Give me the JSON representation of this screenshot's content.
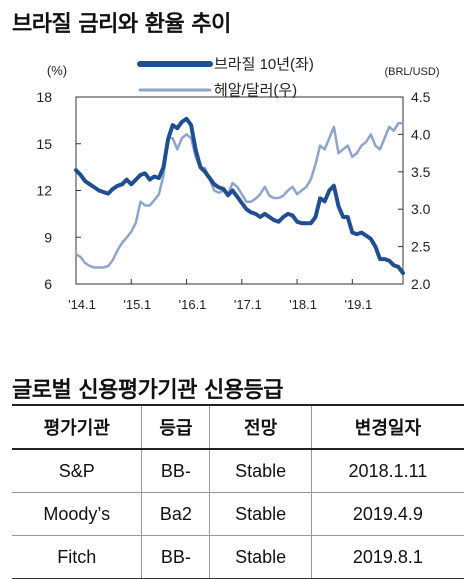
{
  "chart_title": "브라질 금리와 환율 추이",
  "table_title": "글로벌 신용평가기관 신용등급",
  "chart_data": {
    "type": "line",
    "x": [
      "'14.1",
      "'14.2",
      "'14.3",
      "'14.4",
      "'14.5",
      "'14.6",
      "'14.7",
      "'14.8",
      "'14.9",
      "'14.10",
      "'14.11",
      "'14.12",
      "'15.1",
      "'15.2",
      "'15.3",
      "'15.4",
      "'15.5",
      "'15.6",
      "'15.7",
      "'15.8",
      "'15.9",
      "'15.10",
      "'15.11",
      "'15.12",
      "'16.1",
      "'16.2",
      "'16.3",
      "'16.4",
      "'16.5",
      "'16.6",
      "'16.7",
      "'16.8",
      "'16.9",
      "'16.10",
      "'16.11",
      "'16.12",
      "'17.1",
      "'17.2",
      "'17.3",
      "'17.4",
      "'17.5",
      "'17.6",
      "'17.7",
      "'17.8",
      "'17.9",
      "'17.10",
      "'17.11",
      "'17.12",
      "'18.1",
      "'18.2",
      "'18.3",
      "'18.4",
      "'18.5",
      "'18.6",
      "'18.7",
      "'18.8",
      "'18.9",
      "'18.10",
      "'18.11",
      "'18.12",
      "'19.1",
      "'19.2",
      "'19.3",
      "'19.4",
      "'19.5",
      "'19.6",
      "'19.7",
      "'19.8",
      "'19.9",
      "'19.10",
      "'19.11",
      "'19.12"
    ],
    "x_tick_labels": [
      "'14.1",
      "'15.1",
      "'16.1",
      "'17.1",
      "'18.1",
      "'19.1"
    ],
    "series": [
      {
        "name": "브라질 10년(좌)",
        "axis": "left",
        "color": "#1f4e91",
        "values": [
          13.3,
          13.0,
          12.6,
          12.4,
          12.2,
          12.0,
          11.9,
          11.8,
          12.1,
          12.3,
          12.4,
          12.7,
          12.4,
          12.7,
          13.0,
          13.1,
          12.7,
          12.9,
          12.8,
          13.5,
          15.3,
          16.2,
          16.0,
          16.4,
          16.6,
          16.2,
          14.6,
          13.5,
          13.2,
          12.8,
          12.4,
          12.2,
          12.1,
          11.7,
          12.0,
          11.6,
          11.2,
          10.8,
          10.6,
          10.5,
          10.3,
          10.5,
          10.3,
          10.1,
          10.0,
          10.3,
          10.5,
          10.4,
          10.0,
          9.9,
          9.9,
          9.9,
          10.3,
          11.5,
          11.3,
          12.0,
          12.3,
          11.0,
          10.3,
          10.3,
          9.3,
          9.2,
          9.3,
          9.1,
          8.9,
          8.4,
          7.6,
          7.6,
          7.5,
          7.2,
          7.1,
          6.7
        ]
      },
      {
        "name": "헤알/달러(우)",
        "axis": "right",
        "color": "#8fa4cc",
        "values": [
          2.4,
          2.36,
          2.28,
          2.24,
          2.22,
          2.22,
          2.22,
          2.24,
          2.32,
          2.45,
          2.55,
          2.62,
          2.7,
          2.82,
          3.1,
          3.05,
          3.05,
          3.12,
          3.2,
          3.45,
          3.95,
          3.95,
          3.8,
          3.95,
          4.0,
          3.95,
          3.7,
          3.55,
          3.55,
          3.4,
          3.25,
          3.22,
          3.25,
          3.2,
          3.35,
          3.3,
          3.2,
          3.1,
          3.1,
          3.14,
          3.2,
          3.3,
          3.18,
          3.15,
          3.15,
          3.18,
          3.25,
          3.3,
          3.2,
          3.25,
          3.3,
          3.4,
          3.6,
          3.85,
          3.8,
          3.95,
          4.1,
          3.75,
          3.8,
          3.85,
          3.7,
          3.75,
          3.85,
          3.9,
          4.0,
          3.85,
          3.8,
          3.95,
          4.1,
          4.05,
          4.15,
          4.15
        ]
      }
    ],
    "left_axis": {
      "unit": "(%)",
      "ylim": [
        6,
        18
      ],
      "ticks": [
        "18",
        "15",
        "12",
        "9",
        "6"
      ]
    },
    "right_axis": {
      "unit": "(BRL/USD)",
      "ylim": [
        2.0,
        4.5
      ],
      "ticks": [
        "4.5",
        "4.0",
        "3.5",
        "3.0",
        "2.5",
        "2.0"
      ]
    },
    "grid": false,
    "legend_position": "top-center"
  },
  "table": {
    "headers": [
      "평가기관",
      "등급",
      "전망",
      "변경일자"
    ],
    "rows": [
      [
        "S&P",
        "BB-",
        "Stable",
        "2018.1.11"
      ],
      [
        "Moody’s",
        "Ba2",
        "Stable",
        "2019.4.9"
      ],
      [
        "Fitch",
        "BB-",
        "Stable",
        "2019.8.1"
      ]
    ]
  }
}
